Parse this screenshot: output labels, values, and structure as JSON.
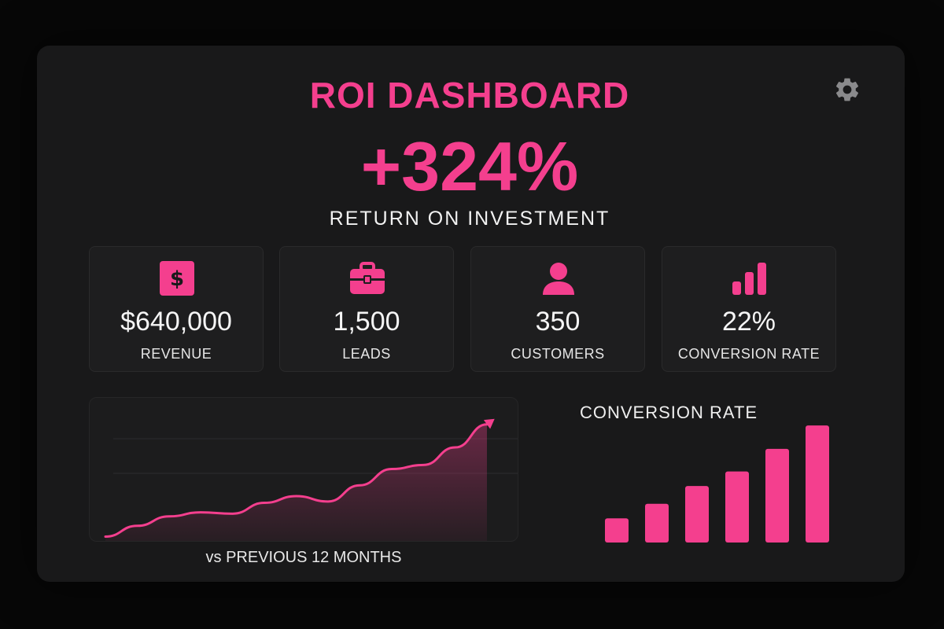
{
  "header": {
    "title": "ROI DASHBOARD",
    "settings_icon": "gear-icon"
  },
  "roi": {
    "value": "+324%",
    "label": "RETURN ON INVESTMENT"
  },
  "metrics": [
    {
      "icon": "dollar-icon",
      "value": "$640,000",
      "label": "REVENUE"
    },
    {
      "icon": "briefcase-icon",
      "value": "1,500",
      "label": "LEADS"
    },
    {
      "icon": "user-icon",
      "value": "350",
      "label": "CUSTOMERS"
    },
    {
      "icon": "bar-chart-icon",
      "value": "22%",
      "label": "CONVERSION RATE"
    }
  ],
  "trend": {
    "caption": "vs PREVIOUS 12 MONTHS"
  },
  "conversion": {
    "title": "CONVERSION RATE"
  },
  "colors": {
    "accent": "#f43f8e",
    "background": "#070707",
    "panel": "#19191a"
  },
  "chart_data": [
    {
      "type": "area",
      "values": [
        2,
        10,
        17,
        20,
        19,
        27,
        32,
        28,
        40,
        52,
        55,
        68,
        85
      ],
      "ylim": [
        0,
        100
      ]
    },
    {
      "type": "bar",
      "values": [
        30,
        48,
        70,
        88,
        116,
        145
      ],
      "ylim": [
        0,
        150
      ]
    }
  ]
}
